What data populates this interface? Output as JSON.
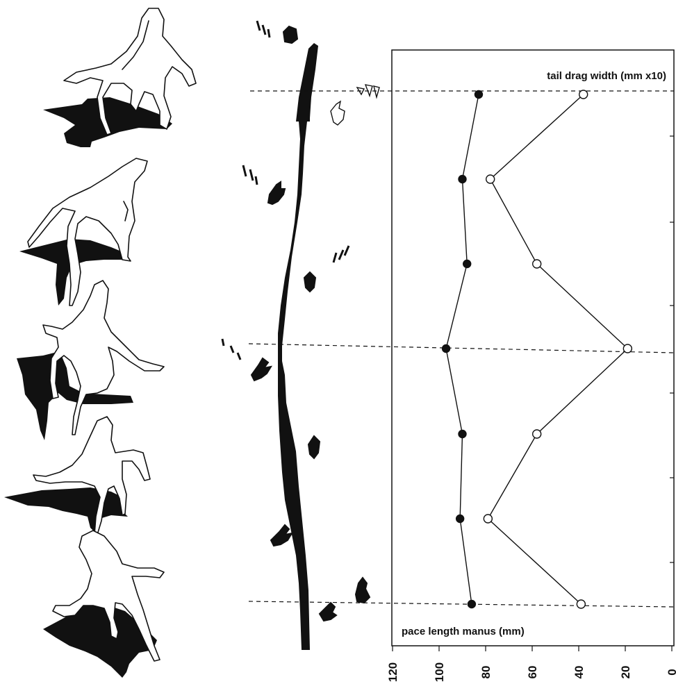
{
  "figure": {
    "tail_label": "tail drag width (mm x10)",
    "pace_label": "pace length manus (mm)",
    "axis_ticks": [
      "120",
      "100",
      "80",
      "60",
      "40",
      "20",
      "0"
    ]
  },
  "chart_data": {
    "type": "line",
    "orientation": "vertical-sequence",
    "x_axis": {
      "ticks": [
        120,
        100,
        80,
        60,
        40,
        20,
        0
      ],
      "range": [
        120,
        0
      ]
    },
    "series": [
      {
        "name": "pace length manus (mm)",
        "marker": "filled-circle",
        "values": [
          83,
          90,
          88,
          97,
          90,
          91,
          86
        ]
      },
      {
        "name": "tail drag width (mm x10)",
        "marker": "open-circle",
        "values": [
          38,
          78,
          58,
          19,
          58,
          79,
          39
        ]
      }
    ],
    "grid": false,
    "reference_lines": "dashed horizontal lines at positions 1, 4 and 7"
  },
  "colors": {
    "ink": "#111111",
    "paper": "#ffffff"
  }
}
